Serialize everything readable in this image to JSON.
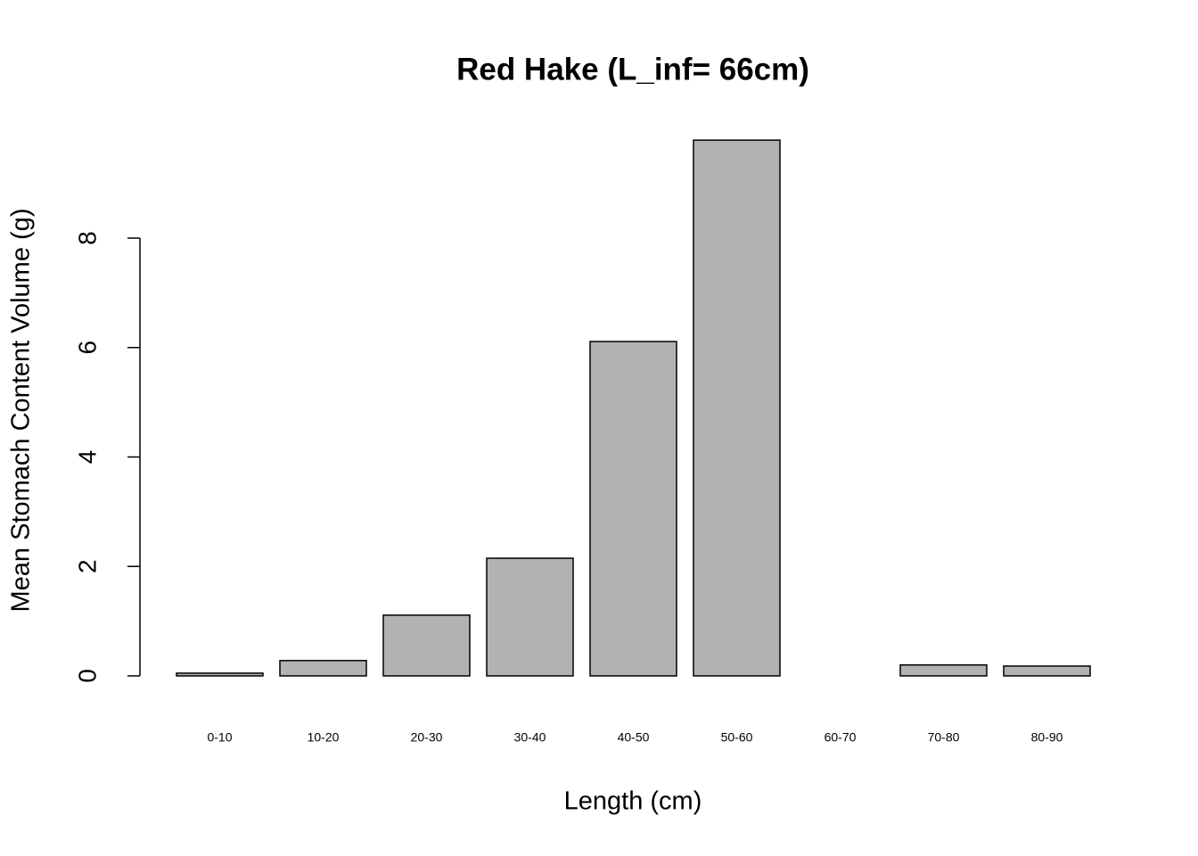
{
  "chart_data": {
    "type": "bar",
    "title": "Red Hake (L_inf= 66cm)",
    "x_label": "Length (cm)",
    "y_label": "Mean Stomach Content Volume (g)",
    "categories": [
      "0-10",
      "10-20",
      "20-30",
      "30-40",
      "40-50",
      "50-60",
      "60-70",
      "70-80",
      "80-90"
    ],
    "values": [
      0.05,
      0.28,
      1.11,
      2.15,
      6.11,
      9.79,
      null,
      0.2,
      0.18
    ],
    "color": "#b2b2b2",
    "ylim": [
      -0.4,
      10.2
    ],
    "yticks": [
      0,
      2,
      4,
      6,
      8
    ],
    "grid": false
  }
}
